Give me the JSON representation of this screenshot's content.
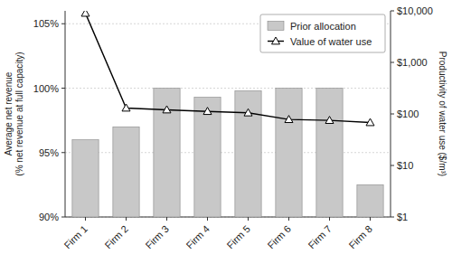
{
  "chart_data": {
    "type": "bar",
    "categories": [
      "Firm 1",
      "Firm 2",
      "Firm 3",
      "Firm 4",
      "Firm 5",
      "Firm 6",
      "Firm 7",
      "Firm 8"
    ],
    "ylabel": "Average net revenue\n(% net revenue at full capacity)",
    "y2label": "Productivity of water use ($/m³)",
    "series": [
      {
        "name": "Prior allocation",
        "type": "bar",
        "color": "#c8c8c8",
        "values": [
          96.0,
          97.0,
          100.0,
          99.3,
          99.8,
          100.0,
          100.0,
          92.5
        ]
      },
      {
        "name": "Value of water use",
        "type": "line",
        "color": "#000000",
        "marker": "triangle",
        "axis": "y2",
        "values": [
          9000,
          130,
          120,
          112,
          105,
          78,
          75,
          68
        ]
      }
    ],
    "ylim": [
      90,
      106
    ],
    "yticks": [
      {
        "value": 90,
        "label": "90%"
      },
      {
        "value": 95,
        "label": "95%"
      },
      {
        "value": 100,
        "label": "100%"
      },
      {
        "value": 105,
        "label": "105%"
      }
    ],
    "y2lim": [
      1,
      10000
    ],
    "y2ticks": [
      {
        "value": 1,
        "label": "$1"
      },
      {
        "value": 10,
        "label": "$10"
      },
      {
        "value": 100,
        "label": "$100"
      },
      {
        "value": 1000,
        "label": "$1,000"
      },
      {
        "value": 10000,
        "label": "$10,000"
      }
    ],
    "log": "y2",
    "grid": true,
    "legend": "upper right"
  }
}
